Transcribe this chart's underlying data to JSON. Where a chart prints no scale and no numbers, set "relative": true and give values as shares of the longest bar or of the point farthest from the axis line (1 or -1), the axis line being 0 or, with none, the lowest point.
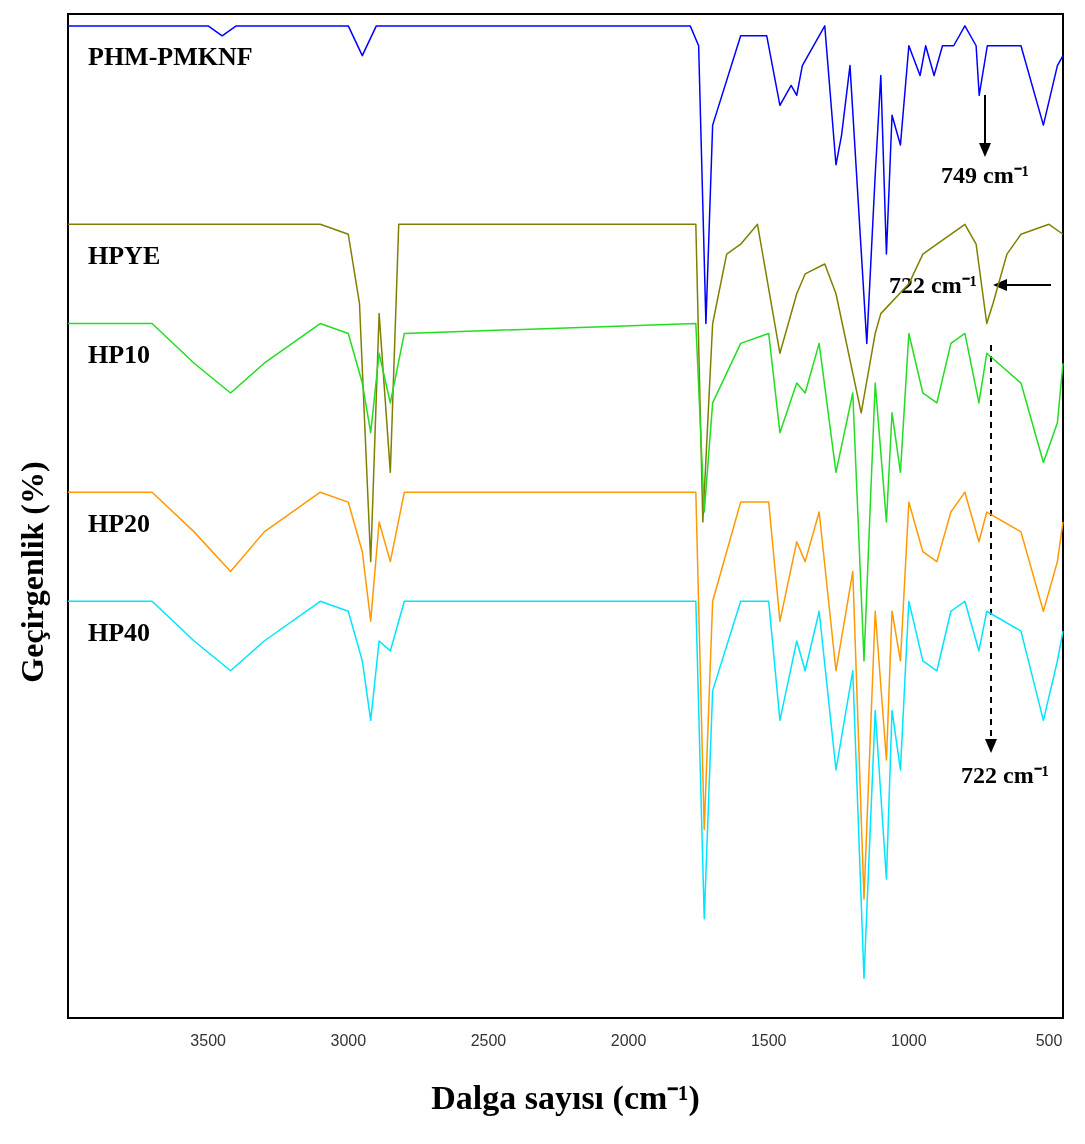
{
  "chart_data": {
    "type": "line",
    "relative": true,
    "xlabel": "Dalga sayısı (cm⁻¹)",
    "ylabel": "Geçirgenlik (%)",
    "xlim": [
      4000,
      450
    ],
    "xticks": [
      3500,
      3000,
      2500,
      2000,
      1500,
      1000,
      500
    ],
    "grid": false,
    "legend": false,
    "marker": "none",
    "series": [
      {
        "name": "PHM-PMKNF",
        "color": "#0000ff",
        "x": [
          4000,
          3500,
          3450,
          3400,
          3000,
          2950,
          2900,
          1780,
          1750,
          1724,
          1700,
          1600,
          1507,
          1460,
          1420,
          1400,
          1380,
          1300,
          1260,
          1240,
          1210,
          1150,
          1120,
          1100,
          1080,
          1060,
          1030,
          1000,
          960,
          940,
          910,
          880,
          840,
          800,
          760,
          749,
          720,
          600,
          520,
          470,
          450
        ],
        "values": [
          1,
          1,
          0.99,
          1,
          1,
          0.97,
          1,
          1,
          0.98,
          0.7,
          0.9,
          0.99,
          0.99,
          0.92,
          0.94,
          0.93,
          0.96,
          1.0,
          0.86,
          0.89,
          0.96,
          0.68,
          0.85,
          0.95,
          0.77,
          0.91,
          0.88,
          0.98,
          0.95,
          0.98,
          0.95,
          0.98,
          0.98,
          1,
          0.98,
          0.93,
          0.98,
          0.98,
          0.9,
          0.96,
          0.97
        ]
      },
      {
        "name": "HPYE",
        "color": "#808000",
        "x": [
          4000,
          3100,
          3000,
          2960,
          2920,
          2890,
          2850,
          2820,
          1760,
          1735,
          1700,
          1650,
          1600,
          1540,
          1460,
          1400,
          1370,
          1300,
          1260,
          1170,
          1120,
          1100,
          1000,
          950,
          900,
          800,
          760,
          722,
          700,
          650,
          600,
          500,
          450
        ],
        "values": [
          0.8,
          0.8,
          0.79,
          0.72,
          0.46,
          0.71,
          0.55,
          0.8,
          0.8,
          0.5,
          0.7,
          0.77,
          0.78,
          0.8,
          0.67,
          0.73,
          0.75,
          0.76,
          0.73,
          0.61,
          0.69,
          0.71,
          0.74,
          0.77,
          0.78,
          0.8,
          0.78,
          0.7,
          0.72,
          0.77,
          0.79,
          0.8,
          0.79
        ]
      },
      {
        "name": "HP10",
        "color": "#22dd22",
        "x": [
          4000,
          3700,
          3550,
          3420,
          3300,
          3100,
          3000,
          2950,
          2920,
          2890,
          2850,
          2800,
          1760,
          1730,
          1700,
          1600,
          1500,
          1460,
          1400,
          1370,
          1320,
          1260,
          1200,
          1160,
          1120,
          1080,
          1060,
          1030,
          1000,
          950,
          900,
          850,
          800,
          750,
          722,
          600,
          520,
          470,
          450
        ],
        "values": [
          0.7,
          0.7,
          0.66,
          0.63,
          0.66,
          0.7,
          0.69,
          0.64,
          0.59,
          0.67,
          0.62,
          0.69,
          0.7,
          0.51,
          0.62,
          0.68,
          0.69,
          0.59,
          0.64,
          0.63,
          0.68,
          0.55,
          0.63,
          0.36,
          0.64,
          0.5,
          0.61,
          0.55,
          0.69,
          0.63,
          0.62,
          0.68,
          0.69,
          0.62,
          0.67,
          0.64,
          0.56,
          0.6,
          0.66
        ]
      },
      {
        "name": "HP20",
        "color": "#ff9900",
        "x": [
          4000,
          3700,
          3550,
          3420,
          3300,
          3100,
          3000,
          2950,
          2920,
          2890,
          2850,
          2800,
          1760,
          1730,
          1700,
          1600,
          1500,
          1460,
          1400,
          1370,
          1320,
          1260,
          1200,
          1160,
          1120,
          1080,
          1060,
          1030,
          1000,
          950,
          900,
          850,
          800,
          750,
          722,
          600,
          520,
          470,
          450
        ],
        "values": [
          0.53,
          0.53,
          0.49,
          0.45,
          0.49,
          0.53,
          0.52,
          0.47,
          0.4,
          0.5,
          0.46,
          0.53,
          0.53,
          0.19,
          0.42,
          0.52,
          0.52,
          0.4,
          0.48,
          0.46,
          0.51,
          0.35,
          0.45,
          0.12,
          0.41,
          0.26,
          0.41,
          0.36,
          0.52,
          0.47,
          0.46,
          0.51,
          0.53,
          0.48,
          0.51,
          0.49,
          0.41,
          0.46,
          0.5
        ]
      },
      {
        "name": "HP40",
        "color": "#00e5ff",
        "x": [
          4000,
          3700,
          3550,
          3420,
          3300,
          3100,
          3000,
          2950,
          2920,
          2890,
          2850,
          2800,
          1760,
          1730,
          1700,
          1600,
          1500,
          1460,
          1400,
          1370,
          1320,
          1260,
          1200,
          1160,
          1120,
          1080,
          1060,
          1030,
          1000,
          950,
          900,
          850,
          800,
          750,
          722,
          600,
          520,
          470,
          450
        ],
        "values": [
          0.42,
          0.42,
          0.38,
          0.35,
          0.38,
          0.42,
          0.41,
          0.36,
          0.3,
          0.38,
          0.37,
          0.42,
          0.42,
          0.1,
          0.33,
          0.42,
          0.42,
          0.3,
          0.38,
          0.35,
          0.41,
          0.25,
          0.35,
          0.04,
          0.31,
          0.14,
          0.31,
          0.25,
          0.42,
          0.36,
          0.35,
          0.41,
          0.42,
          0.37,
          0.41,
          0.39,
          0.3,
          0.36,
          0.39
        ]
      }
    ],
    "annotations": [
      "749 cm⁻¹",
      "722 cm⁻¹",
      "722 cm⁻¹"
    ]
  }
}
